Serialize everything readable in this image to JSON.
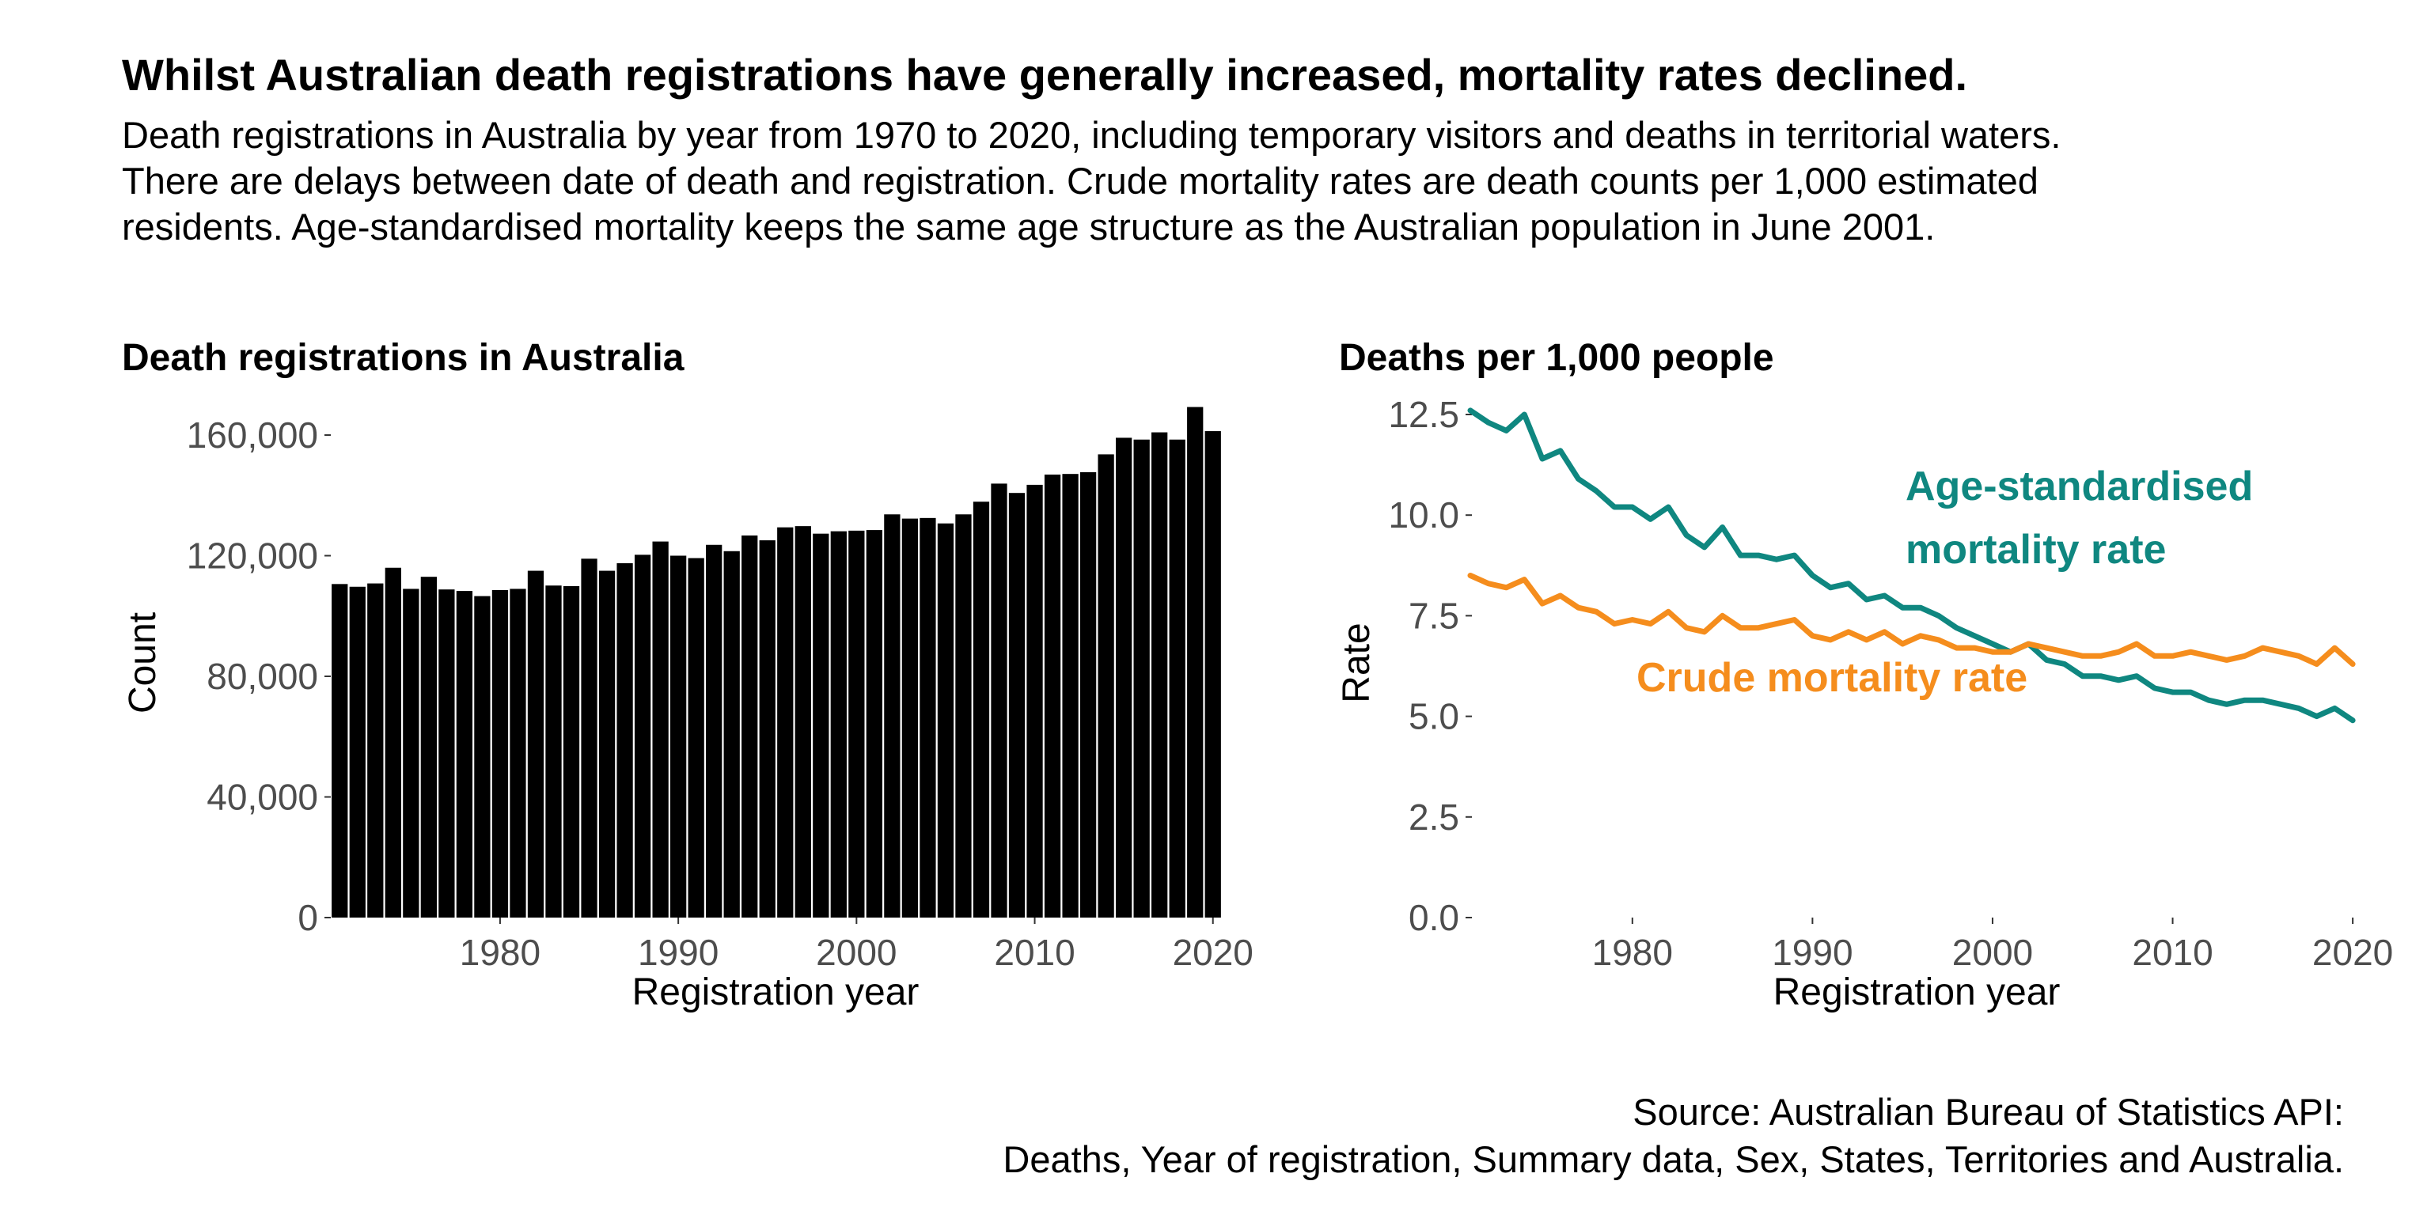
{
  "title": "Whilst Australian death registrations have generally increased, mortality rates declined.",
  "subtitle_lines": [
    "Death registrations in Australia by year from 1970 to 2020, including temporary visitors and deaths in territorial waters.",
    "There are delays between date of death and registration. Crude mortality rates are death counts per 1,000 estimated",
    "residents. Age-standardised mortality keeps the same age structure as the Australian population in June 2001."
  ],
  "source_lines": [
    "Source: Australian Bureau of Statistics API:",
    "Deaths, Year of registration, Summary data, Sex, States, Territories and Australia."
  ],
  "colors": {
    "bar": "#000000",
    "age_standardised": "#0f8780",
    "crude": "#f58d1d",
    "tick": "#4d4d4d"
  },
  "chart_data": [
    {
      "type": "bar",
      "title": "Death registrations in Australia",
      "xlabel": "Registration year",
      "ylabel": "Count",
      "xlim": [
        1970.5,
        2020.5
      ],
      "ylim": [
        0,
        160000
      ],
      "x_ticks": [
        1980,
        1990,
        2000,
        2010,
        2020
      ],
      "y_ticks": [
        0,
        40000,
        80000,
        120000,
        160000
      ],
      "y_tick_labels": [
        "0",
        "40,000",
        "80,000",
        "120,000",
        "160,000"
      ],
      "x_tick_labels": [
        "1980",
        "1990",
        "2000",
        "2010",
        "2020"
      ],
      "categories": [
        1971,
        1972,
        1973,
        1974,
        1975,
        1976,
        1977,
        1978,
        1979,
        1980,
        1981,
        1982,
        1983,
        1984,
        1985,
        1986,
        1987,
        1988,
        1989,
        1990,
        1991,
        1992,
        1993,
        1994,
        1995,
        1996,
        1997,
        1998,
        1999,
        2000,
        2001,
        2002,
        2003,
        2004,
        2005,
        2006,
        2007,
        2008,
        2009,
        2010,
        2011,
        2012,
        2013,
        2014,
        2015,
        2016,
        2017,
        2018,
        2019,
        2020
      ],
      "values": [
        110600,
        109700,
        110800,
        116000,
        109000,
        113000,
        108800,
        108300,
        106600,
        108600,
        109000,
        115000,
        110100,
        109900,
        119000,
        115000,
        117500,
        120300,
        124700,
        120000,
        119200,
        123600,
        121500,
        126700,
        125100,
        129400,
        129800,
        127300,
        128100,
        128300,
        128500,
        133700,
        132300,
        132500,
        130700,
        133700,
        137900,
        143900,
        140800,
        143500,
        146900,
        147100,
        147700,
        153600,
        159100,
        158500,
        160900,
        158500,
        169300,
        161300
      ]
    },
    {
      "type": "line",
      "title": "Deaths per 1,000 people",
      "xlabel": "Registration year",
      "ylabel": "Rate",
      "xlim": [
        1971,
        2022.5
      ],
      "ylim": [
        0,
        12.5
      ],
      "x_ticks": [
        1980,
        1990,
        2000,
        2010,
        2020
      ],
      "y_ticks": [
        0,
        2.5,
        5,
        7.5,
        10,
        12.5
      ],
      "y_tick_labels": [
        "0.0",
        "2.5",
        "5.0",
        "7.5",
        "10.0",
        "12.5"
      ],
      "x_tick_labels": [
        "1980",
        "1990",
        "2000",
        "2010",
        "2020"
      ],
      "x": [
        1971,
        1972,
        1973,
        1974,
        1975,
        1976,
        1977,
        1978,
        1979,
        1980,
        1981,
        1982,
        1983,
        1984,
        1985,
        1986,
        1987,
        1988,
        1989,
        1990,
        1991,
        1992,
        1993,
        1994,
        1995,
        1996,
        1997,
        1998,
        1999,
        2000,
        2001,
        2002,
        2003,
        2004,
        2005,
        2006,
        2007,
        2008,
        2009,
        2010,
        2011,
        2012,
        2013,
        2014,
        2015,
        2016,
        2017,
        2018,
        2019,
        2020
      ],
      "series": [
        {
          "name": "Age-standardised mortality rate",
          "label_lines": [
            "Age-standardised",
            "mortality rate"
          ],
          "values": [
            12.6,
            12.3,
            12.1,
            12.5,
            11.4,
            11.6,
            10.9,
            10.6,
            10.2,
            10.2,
            9.9,
            10.2,
            9.5,
            9.2,
            9.7,
            9.0,
            9.0,
            8.9,
            9.0,
            8.5,
            8.2,
            8.3,
            7.9,
            8.0,
            7.7,
            7.7,
            7.5,
            7.2,
            7.0,
            6.8,
            6.6,
            6.8,
            6.4,
            6.3,
            6.0,
            6.0,
            5.9,
            6.0,
            5.7,
            5.6,
            5.6,
            5.4,
            5.3,
            5.4,
            5.4,
            5.3,
            5.2,
            5.0,
            5.2,
            4.9
          ]
        },
        {
          "name": "Crude mortality rate",
          "label_lines": [
            "Crude mortality rate"
          ],
          "values": [
            8.5,
            8.3,
            8.2,
            8.4,
            7.8,
            8.0,
            7.7,
            7.6,
            7.3,
            7.4,
            7.3,
            7.6,
            7.2,
            7.1,
            7.5,
            7.2,
            7.2,
            7.3,
            7.4,
            7.0,
            6.9,
            7.1,
            6.9,
            7.1,
            6.8,
            7.0,
            6.9,
            6.7,
            6.7,
            6.6,
            6.6,
            6.8,
            6.7,
            6.6,
            6.5,
            6.5,
            6.6,
            6.8,
            6.5,
            6.5,
            6.6,
            6.5,
            6.4,
            6.5,
            6.7,
            6.6,
            6.5,
            6.3,
            6.7,
            6.3
          ]
        }
      ]
    }
  ]
}
